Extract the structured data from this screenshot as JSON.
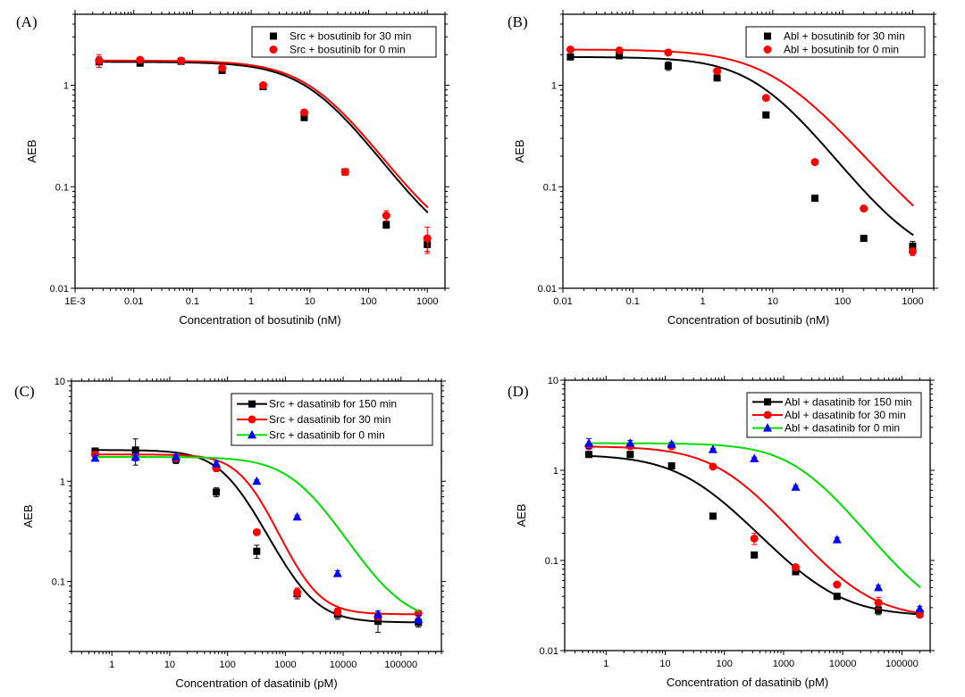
{
  "chart_data": [
    {
      "panel": "(A)",
      "type": "line",
      "scale": "log-log",
      "xlabel": "Concentration of bosutinib (nM)",
      "ylabel": "AEB",
      "xlim": [
        0.001,
        2000
      ],
      "ylim": [
        0.01,
        5
      ],
      "xticks": [
        {
          "v": 0.001,
          "label": "1E-3"
        },
        {
          "v": 0.01,
          "label": "0.01"
        },
        {
          "v": 0.1,
          "label": "0.1"
        },
        {
          "v": 1,
          "label": "1"
        },
        {
          "v": 10,
          "label": "10"
        },
        {
          "v": 100,
          "label": "100"
        },
        {
          "v": 1000,
          "label": "1000"
        }
      ],
      "yticks": [
        {
          "v": 0.01,
          "label": "0.01"
        },
        {
          "v": 0.1,
          "label": "0.1"
        },
        {
          "v": 1,
          "label": "1"
        }
      ],
      "legend": "top-right",
      "legend_style": "marker-only",
      "x": [
        0.00256,
        0.0128,
        0.064,
        0.32,
        1.6,
        8,
        40,
        200,
        1000
      ],
      "series": [
        {
          "name": "Src + bosutinib for 30 min",
          "color": "#000000",
          "marker": "square",
          "values": [
            1.7,
            1.65,
            1.72,
            1.4,
            0.97,
            0.48,
            0.14,
            0.042,
            0.027
          ],
          "errors": [
            0.2,
            0.05,
            0.1,
            0.05,
            0.03,
            0.02,
            0.005,
            0.003,
            0.004
          ],
          "fit": {
            "top": 1.7,
            "bottom": 0.018,
            "ic50": 12,
            "hill": 0.85
          }
        },
        {
          "name": "Src + bosutinib for 0 min",
          "color": "#ff0000",
          "marker": "circle",
          "values": [
            1.75,
            1.78,
            1.75,
            1.48,
            1.0,
            0.54,
            0.14,
            0.052,
            0.031
          ],
          "errors": [
            0.25,
            0.05,
            0.12,
            0.05,
            0.03,
            0.03,
            0.005,
            0.006,
            0.009
          ],
          "fit": {
            "top": 1.75,
            "bottom": 0.021,
            "ic50": 13,
            "hill": 0.85
          }
        }
      ]
    },
    {
      "panel": "(B)",
      "type": "line",
      "scale": "log-log",
      "xlabel": "Concentration of bosutinib (nM)",
      "ylabel": "AEB",
      "xlim": [
        0.01,
        2000
      ],
      "ylim": [
        0.01,
        5
      ],
      "xticks": [
        {
          "v": 0.01,
          "label": "0.01"
        },
        {
          "v": 0.1,
          "label": "0.1"
        },
        {
          "v": 1,
          "label": "1"
        },
        {
          "v": 10,
          "label": "10"
        },
        {
          "v": 100,
          "label": "100"
        },
        {
          "v": 1000,
          "label": "1000"
        }
      ],
      "yticks": [
        {
          "v": 0.01,
          "label": "0.01"
        },
        {
          "v": 0.1,
          "label": "0.1"
        },
        {
          "v": 1,
          "label": "1"
        }
      ],
      "legend": "top-right",
      "legend_style": "marker-only",
      "x": [
        0.0128,
        0.064,
        0.32,
        1.6,
        8,
        40,
        200,
        1000
      ],
      "series": [
        {
          "name": "Abl + bosutinib for 30 min",
          "color": "#000000",
          "marker": "square",
          "values": [
            1.9,
            1.95,
            1.55,
            1.18,
            0.51,
            0.077,
            0.031,
            0.026
          ],
          "errors": [
            0.05,
            0.05,
            0.15,
            0.05,
            0.02,
            0.003,
            0.001,
            0.003
          ],
          "fit": {
            "top": 1.9,
            "bottom": 0.017,
            "ic50": 7,
            "hill": 0.95
          }
        },
        {
          "name": "Abl + bosutinib for 0 min",
          "color": "#ff0000",
          "marker": "circle",
          "values": [
            2.25,
            2.2,
            2.1,
            1.38,
            0.75,
            0.175,
            0.061,
            0.023
          ],
          "errors": [
            0.05,
            0.05,
            0.05,
            0.08,
            0.03,
            0.005,
            0.002,
            0.002
          ],
          "fit": {
            "top": 2.25,
            "bottom": 0.015,
            "ic50": 12,
            "hill": 0.85
          }
        }
      ]
    },
    {
      "panel": "(C)",
      "type": "line",
      "scale": "log-log",
      "xlabel": "Concentration of dasatinib (pM)",
      "ylabel": "AEB",
      "xlim": [
        0.2,
        500000
      ],
      "ylim": [
        0.02,
        10
      ],
      "xticks": [
        {
          "v": 1,
          "label": "1"
        },
        {
          "v": 10,
          "label": "10"
        },
        {
          "v": 100,
          "label": "100"
        },
        {
          "v": 1000,
          "label": "1000"
        },
        {
          "v": 10000,
          "label": "10000"
        },
        {
          "v": 100000,
          "label": "100000"
        }
      ],
      "yticks": [
        {
          "v": 0.1,
          "label": "0.1"
        },
        {
          "v": 1,
          "label": "1"
        },
        {
          "v": 10,
          "label": "10"
        }
      ],
      "legend": "top-right",
      "legend_style": "line-marker",
      "x": [
        0.512,
        2.56,
        12.8,
        64,
        320,
        1600,
        8000,
        40000,
        200000
      ],
      "series": [
        {
          "name": "Src + dasatinib for 150 min",
          "color": "#000000",
          "marker": "square",
          "values": [
            2.0,
            2.05,
            1.65,
            0.78,
            0.2,
            0.075,
            0.047,
            0.04,
            0.039
          ],
          "errors": [
            0.15,
            0.6,
            0.15,
            0.08,
            0.03,
            0.008,
            0.005,
            0.009,
            0.004
          ],
          "fit": {
            "top": 2.05,
            "bottom": 0.039,
            "ic50": 110,
            "hill": 1.3
          }
        },
        {
          "name": "Src + dasatinib for 30 min",
          "color": "#ff0000",
          "marker": "circle",
          "values": [
            1.85,
            1.75,
            1.7,
            1.35,
            0.31,
            0.078,
            0.05,
            0.045,
            0.048
          ],
          "errors": [
            0.1,
            0.1,
            0.1,
            0.1,
            0.02,
            0.008,
            0.004,
            0.004,
            0.003
          ],
          "fit": {
            "top": 1.85,
            "bottom": 0.047,
            "ic50": 230,
            "hill": 1.5
          }
        },
        {
          "name": "Src + dasatinib for 0 min",
          "color": "#00dd00",
          "marker": "triangle",
          "marker_color": "#0000ff",
          "values": [
            1.7,
            1.75,
            1.75,
            1.5,
            1.0,
            0.44,
            0.12,
            0.047,
            0.042
          ],
          "errors": [
            0.1,
            0.15,
            0.1,
            0.08,
            0.03,
            0.02,
            0.008,
            0.004,
            0.004
          ],
          "fit": {
            "top": 1.75,
            "bottom": 0.038,
            "ic50": 1900,
            "hill": 1.05
          }
        }
      ]
    },
    {
      "panel": "(D)",
      "type": "line",
      "scale": "log-log",
      "xlabel": "Concentration of dasatinib (pM)",
      "ylabel": "AEB",
      "xlim": [
        0.2,
        300000
      ],
      "ylim": [
        0.01,
        10
      ],
      "xticks": [
        {
          "v": 1,
          "label": "1"
        },
        {
          "v": 10,
          "label": "10"
        },
        {
          "v": 100,
          "label": "100"
        },
        {
          "v": 1000,
          "label": "1000"
        },
        {
          "v": 10000,
          "label": "10000"
        },
        {
          "v": 100000,
          "label": "100000"
        }
      ],
      "yticks": [
        {
          "v": 0.01,
          "label": "0.01"
        },
        {
          "v": 0.1,
          "label": "0.1"
        },
        {
          "v": 1,
          "label": "1"
        },
        {
          "v": 10,
          "label": "10"
        }
      ],
      "legend": "top-right",
      "legend_style": "line-marker",
      "x": [
        0.512,
        2.56,
        12.8,
        64,
        320,
        1600,
        8000,
        40000,
        200000
      ],
      "series": [
        {
          "name": "Abl + dasatinib for 150 min",
          "color": "#000000",
          "marker": "square",
          "values": [
            1.5,
            1.5,
            1.12,
            0.31,
            0.115,
            0.075,
            0.04,
            0.028,
            0.026
          ],
          "errors": [
            0.05,
            0.05,
            0.05,
            0.01,
            0.005,
            0.003,
            0.003,
            0.003,
            0.001
          ],
          "fit": {
            "top": 1.5,
            "bottom": 0.024,
            "ic50": 30,
            "hill": 0.8
          }
        },
        {
          "name": "Abl + dasatinib for 30 min",
          "color": "#ff0000",
          "marker": "circle",
          "values": [
            1.85,
            1.85,
            1.85,
            1.1,
            0.175,
            0.084,
            0.054,
            0.034,
            0.025
          ],
          "errors": [
            0.1,
            0.1,
            0.1,
            0.05,
            0.025,
            0.004,
            0.003,
            0.005,
            0.001
          ],
          "fit": {
            "top": 1.85,
            "bottom": 0.023,
            "ic50": 110,
            "hill": 0.85
          }
        },
        {
          "name": "Abl + dasatinib for 0 min",
          "color": "#00dd00",
          "marker": "triangle",
          "marker_color": "#0000ff",
          "values": [
            2.0,
            2.0,
            1.95,
            1.7,
            1.35,
            0.65,
            0.17,
            0.05,
            0.029
          ],
          "errors": [
            0.25,
            0.15,
            0.1,
            0.05,
            0.05,
            0.03,
            0.01,
            0.003,
            0.002
          ],
          "fit": {
            "top": 2.0,
            "bottom": 0.02,
            "ic50": 2000,
            "hill": 0.9
          }
        }
      ]
    }
  ]
}
